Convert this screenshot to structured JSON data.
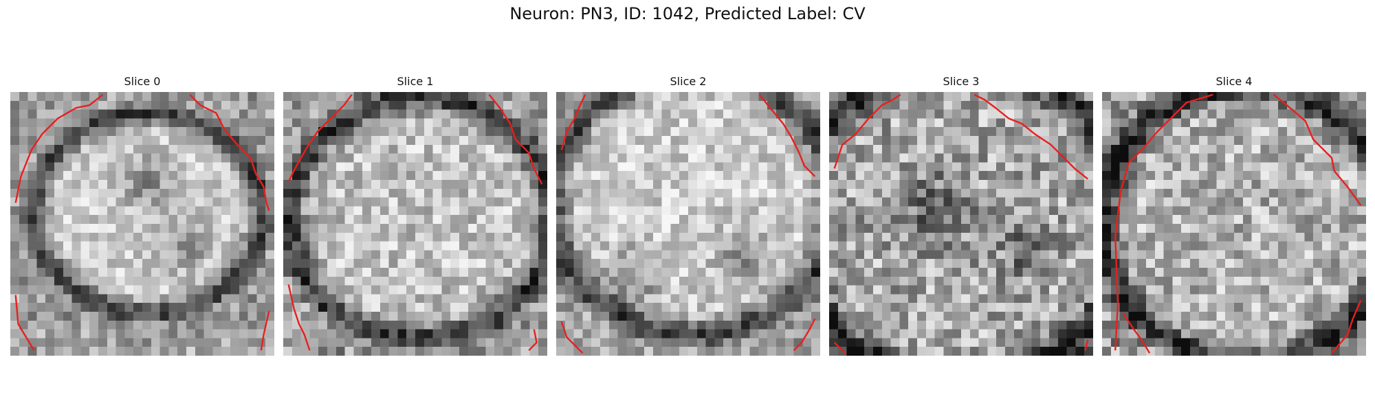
{
  "figure": {
    "title": "Neuron: PN3, ID: 1042, Predicted Label: CV"
  },
  "colormap": "gray",
  "contour_color": "#e8201e",
  "slices": [
    {
      "label": "Slice 0"
    },
    {
      "label": "Slice 1"
    },
    {
      "label": "Slice 2"
    },
    {
      "label": "Slice 3"
    },
    {
      "label": "Slice 4"
    }
  ]
}
